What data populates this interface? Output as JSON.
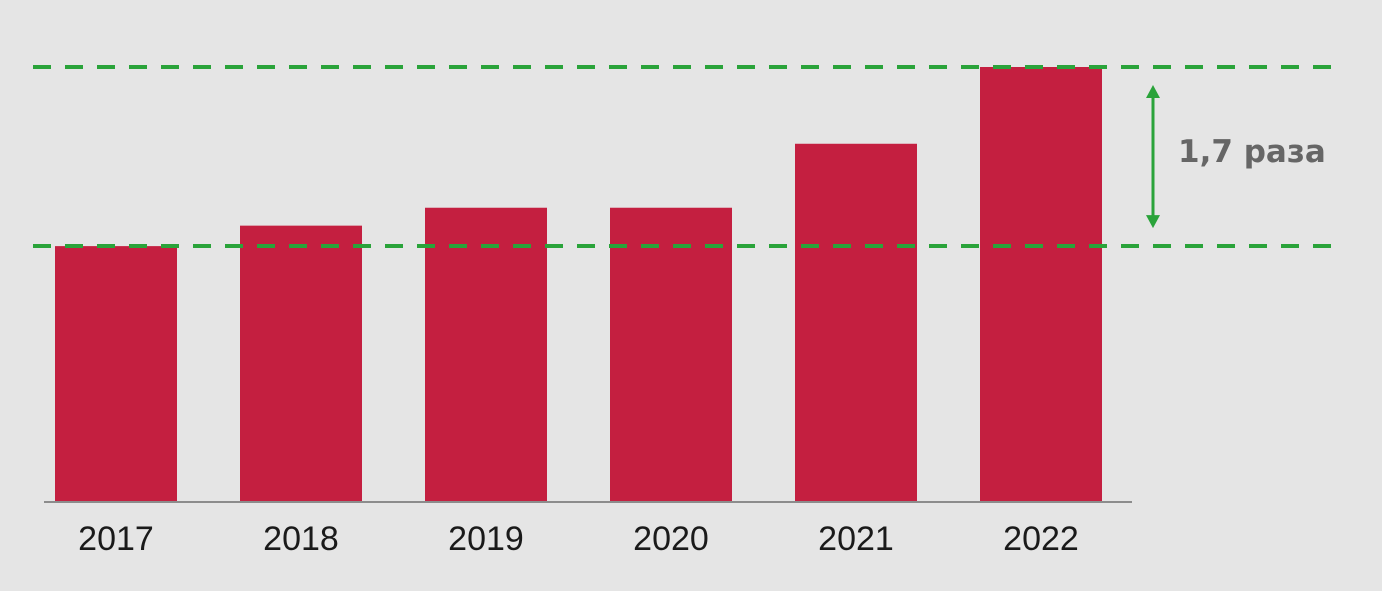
{
  "chart_data": {
    "type": "bar",
    "categories": [
      "2017",
      "2018",
      "2019",
      "2020",
      "2021",
      "2022"
    ],
    "values": [
      1.0,
      1.08,
      1.15,
      1.15,
      1.4,
      1.7
    ],
    "ylim": [
      0,
      1.7
    ],
    "grid": false,
    "legend": "none",
    "bar_color": "#c41f40",
    "axis_color": "#8c8c8c",
    "reference_line_color": "#2aa33a",
    "reference_lines": [
      1.0,
      1.7
    ],
    "annotation": {
      "text": "1,7 раза",
      "from_value": 1.0,
      "to_value": 1.7
    }
  }
}
